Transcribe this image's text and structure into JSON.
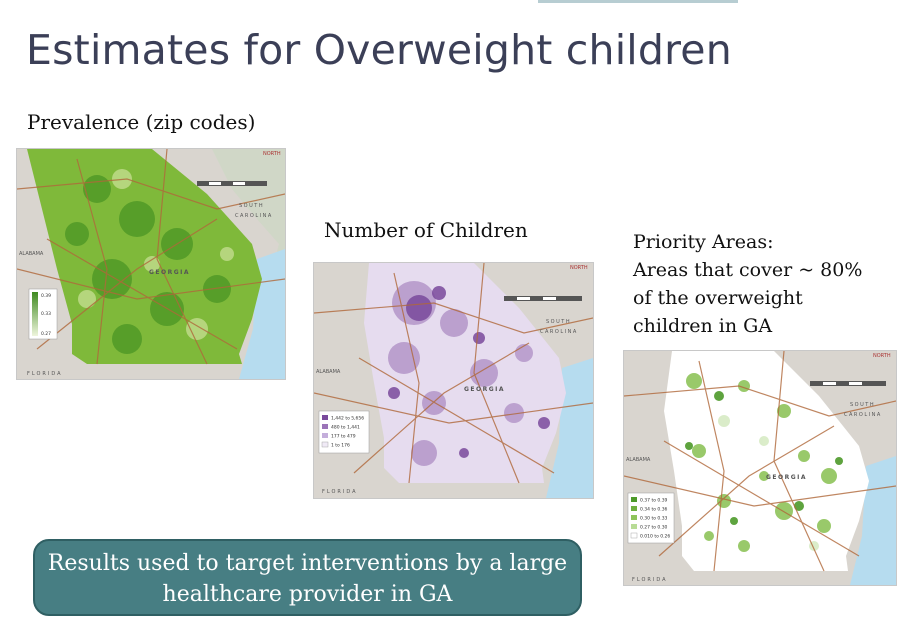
{
  "slide": {
    "title": "Estimates for Overweight children",
    "callout_line1": "Results used to target interventions by a large",
    "callout_line2": "healthcare provider in GA"
  },
  "maps": {
    "prevalence": {
      "caption": "Prevalence (zip codes)",
      "state_label": "GEORGIA",
      "neighbors": [
        "ALABAMA",
        "FLORIDA",
        "SOUTH",
        "CAROLINA",
        "NORTH"
      ],
      "legend": [
        "0.39",
        "0.33",
        "0.27"
      ],
      "colors": {
        "light": "#b5d77a",
        "mid": "#7fb93a",
        "dark": "#3f8a1f"
      }
    },
    "children": {
      "caption": "Number of Children",
      "state_label": "GEORGIA",
      "neighbors": [
        "ALABAMA",
        "FLORIDA",
        "SOUTH",
        "CAROLINA",
        "NORTH"
      ],
      "legend": [
        "1,442 to 5,656",
        "480 to 1,441",
        "177 to 479",
        "1 to 176"
      ],
      "colors": {
        "light": "#e6dcef",
        "mid": "#b496c9",
        "dark": "#7a4a9c"
      }
    },
    "priority": {
      "caption_lines": [
        "Priority Areas:",
        "Areas that cover ~ 80%",
        "of the overweight",
        "children in GA"
      ],
      "state_label": "GEORGIA",
      "neighbors": [
        "ALABAMA",
        "FLORIDA",
        "SOUTH",
        "CAROLINA",
        "NORTH"
      ],
      "legend": [
        "0.37 to 0.39",
        "0.34 to 0.36",
        "0.30 to 0.33",
        "0.27 to 0.30",
        "0.010 to 0.26"
      ],
      "colors": {
        "light": "#d7ebc4",
        "mid": "#8ec45a",
        "dark": "#4d9a2a"
      }
    }
  },
  "colors": {
    "title": "#3b3f57",
    "callout_bg": "#477e83",
    "water": "#b6dcef",
    "land": "#d9d5cf",
    "roads": "#b0683a"
  }
}
